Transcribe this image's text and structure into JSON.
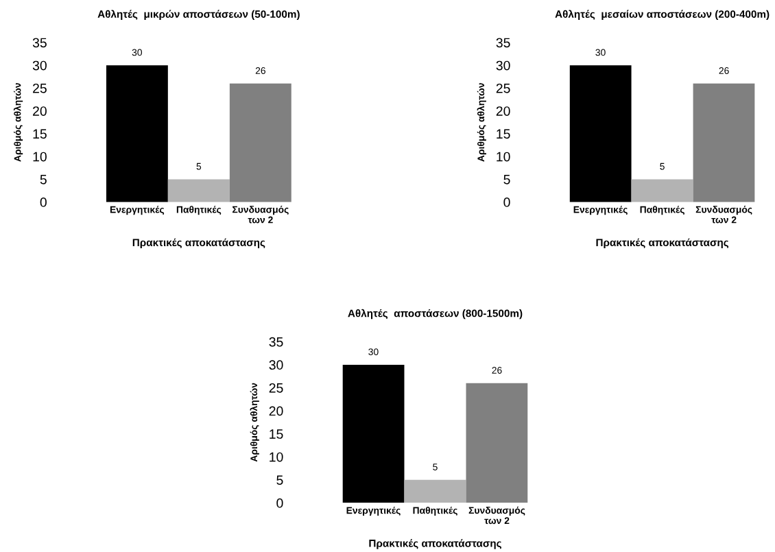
{
  "chart_data": [
    {
      "type": "bar",
      "title": "Αθλητές  μικρών αποστάσεων (50-100m)",
      "xlabel": "Πρακτικές αποκατάστασης",
      "ylabel": "Αριθμός αθλητών",
      "categories": [
        "Ενεργητικές",
        "Παθητικές",
        "Συνδυασμός\nτων 2"
      ],
      "values": [
        30,
        5,
        26
      ],
      "colors": [
        "#000000",
        "#b3b3b3",
        "#808080"
      ],
      "ylim": [
        0,
        35
      ],
      "yticks": [
        0,
        5,
        10,
        15,
        20,
        25,
        30,
        35
      ],
      "data_labels": true,
      "grid": false,
      "legend": false
    },
    {
      "type": "bar",
      "title": "Αθλητές  μεσαίων αποστάσεων (200-400m)",
      "xlabel": "Πρακτικές αποκατάστασης",
      "ylabel": "Αριθμός αθλητών",
      "categories": [
        "Ενεργητικές",
        "Παθητικές",
        "Συνδυασμός\nτων 2"
      ],
      "values": [
        30,
        5,
        26
      ],
      "colors": [
        "#000000",
        "#b3b3b3",
        "#808080"
      ],
      "ylim": [
        0,
        35
      ],
      "yticks": [
        0,
        5,
        10,
        15,
        20,
        25,
        30,
        35
      ],
      "data_labels": true,
      "grid": false,
      "legend": false
    },
    {
      "type": "bar",
      "title": "Αθλητές  αποστάσεων (800-1500m)",
      "xlabel": "Πρακτικές αποκατάστασης",
      "ylabel": "Αριθμός αθλητών",
      "categories": [
        "Ενεργητικές",
        "Παθητικές",
        "Συνδυασμός\nτων 2"
      ],
      "values": [
        30,
        5,
        26
      ],
      "colors": [
        "#000000",
        "#b3b3b3",
        "#808080"
      ],
      "ylim": [
        0,
        35
      ],
      "yticks": [
        0,
        5,
        10,
        15,
        20,
        25,
        30,
        35
      ],
      "data_labels": true,
      "grid": false,
      "legend": false
    }
  ]
}
